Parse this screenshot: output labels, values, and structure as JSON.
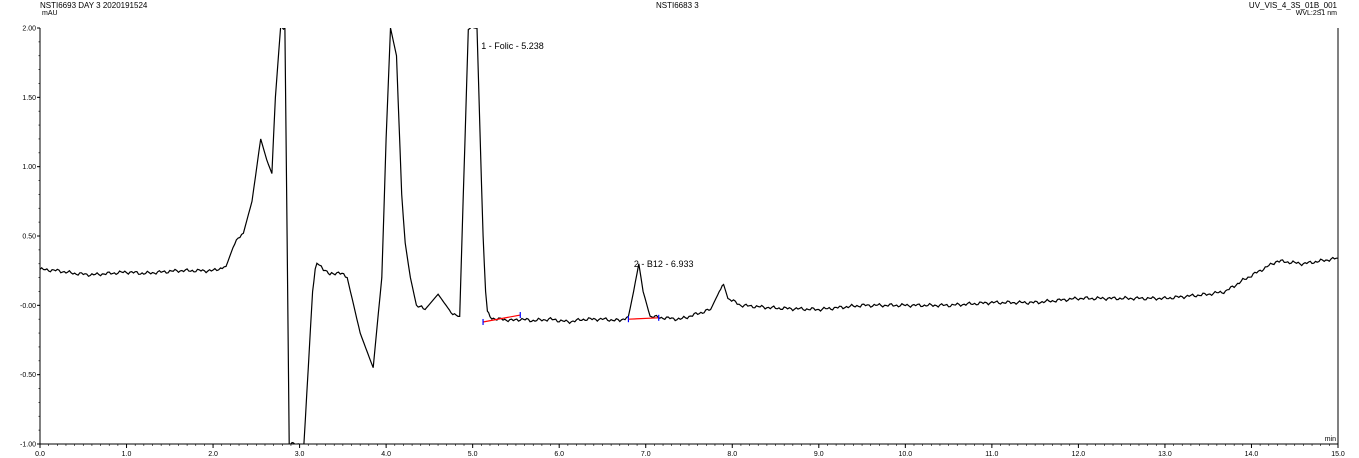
{
  "header": {
    "left_title": "NSTI6693 DAY 3 2020191524",
    "center_title": "NSTI6683 3",
    "right_title": "UV_VIS_4_3S_01B_001",
    "left_unit": "mAU",
    "right_sub": "WVL:2S1 nm"
  },
  "chart_data": {
    "type": "line",
    "title": "",
    "xlabel": "min",
    "ylabel": "mAU",
    "xlim": [
      0.0,
      15.0
    ],
    "ylim": [
      -1.0,
      2.0
    ],
    "x_ticks": [
      0.0,
      1.0,
      2.0,
      3.0,
      4.0,
      5.0,
      6.0,
      7.0,
      8.0,
      9.0,
      10.0,
      11.0,
      12.0,
      13.0,
      14.0,
      15.0
    ],
    "x_tick_labels": [
      "0.0",
      "1.0",
      "2.0",
      "3.0",
      "4.0",
      "5.0",
      "6.0",
      "7.0",
      "8.0",
      "9.0",
      "10.0",
      "11.0",
      "12.0",
      "13.0",
      "14.0",
      "15.0"
    ],
    "y_ticks": [
      2.0,
      1.5,
      1.0,
      0.5,
      0.0,
      -0.5,
      -1.0
    ],
    "y_tick_labels": [
      "2.00",
      "1.50",
      "1.00",
      "0.50",
      "-0.00",
      "-0.50",
      "-1.00"
    ],
    "grid": false,
    "trace_color": "#000000",
    "baseline_color": "#ff0000",
    "marker_color": "#0000ff",
    "series": [
      {
        "x": [
          0.0,
          0.2,
          0.4,
          0.6,
          0.8,
          1.0,
          1.2,
          1.4,
          1.6,
          1.8,
          2.0,
          2.15,
          2.25,
          2.35,
          2.45,
          2.55,
          2.62,
          2.68,
          2.72,
          2.78,
          2.83,
          2.88,
          2.93,
          2.96,
          3.05,
          3.1,
          3.15,
          3.18,
          3.2,
          3.25,
          3.3,
          3.35,
          3.45,
          3.55,
          3.7,
          3.85,
          3.95,
          4.0,
          4.05,
          4.12,
          4.18,
          4.22,
          4.28,
          4.35,
          4.45,
          4.6,
          4.75,
          4.85,
          4.95,
          5.05,
          5.12,
          5.15,
          5.17,
          5.2,
          5.26,
          5.3,
          5.35,
          5.45,
          5.55,
          5.7,
          5.9,
          6.1,
          6.3,
          6.5,
          6.7,
          6.8,
          6.86,
          6.92,
          6.97,
          7.05,
          7.2,
          7.4,
          7.6,
          7.75,
          7.85,
          7.9,
          7.95,
          8.1,
          8.5,
          9.0,
          9.5,
          10.0,
          10.5,
          11.0,
          11.5,
          12.0,
          12.5,
          13.0,
          13.5,
          13.7,
          13.9,
          14.1,
          14.3,
          14.6,
          14.8,
          15.0
        ],
        "y": [
          0.26,
          0.25,
          0.23,
          0.22,
          0.23,
          0.24,
          0.23,
          0.24,
          0.25,
          0.25,
          0.25,
          0.28,
          0.45,
          0.52,
          0.75,
          1.2,
          1.05,
          0.95,
          1.5,
          2.0,
          2.0,
          -1.0,
          -1.0,
          -1.0,
          -1.0,
          -0.45,
          0.1,
          0.25,
          0.3,
          0.28,
          0.25,
          0.22,
          0.24,
          0.2,
          -0.2,
          -0.45,
          0.2,
          1.2,
          2.0,
          1.8,
          0.8,
          0.45,
          0.2,
          0.0,
          -0.03,
          0.08,
          -0.05,
          -0.08,
          2.0,
          2.0,
          0.5,
          0.1,
          -0.05,
          -0.08,
          -0.1,
          -0.1,
          -0.1,
          -0.11,
          -0.1,
          -0.11,
          -0.1,
          -0.12,
          -0.1,
          -0.1,
          -0.11,
          -0.08,
          0.1,
          0.3,
          0.1,
          -0.08,
          -0.09,
          -0.1,
          -0.06,
          -0.03,
          0.1,
          0.15,
          0.05,
          0.0,
          -0.02,
          -0.03,
          0.0,
          0.0,
          0.0,
          0.02,
          0.02,
          0.05,
          0.05,
          0.05,
          0.08,
          0.1,
          0.18,
          0.25,
          0.32,
          0.3,
          0.32,
          0.34
        ]
      }
    ],
    "peaks": [
      {
        "number": "1",
        "label": "1 - Folic - 5.238",
        "x": 5.238,
        "y": 1.92,
        "baseline_x": [
          5.12,
          5.55
        ],
        "baseline_y": [
          -0.12,
          -0.07
        ]
      },
      {
        "number": "2",
        "label": "2 - B12 - 6.933",
        "x": 6.933,
        "y": 0.35,
        "baseline_x": [
          6.8,
          7.15
        ],
        "baseline_y": [
          -0.1,
          -0.09
        ]
      }
    ]
  }
}
